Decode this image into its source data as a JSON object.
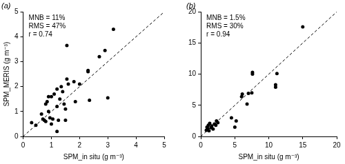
{
  "chart_data": [
    {
      "type": "scatter",
      "title": "(a)",
      "annotations": [
        "MNB = 11%",
        "RMS = 47%",
        "r = 0.74"
      ],
      "x_label": "SPM_in situ (g m⁻³)",
      "y_label": "SPM_MERIS (g m⁻³)",
      "series": [
        {
          "color": "#000000",
          "marker": "circle",
          "x": [
            0.3,
            0.45,
            0.65,
            0.7,
            0.75,
            0.8,
            0.8,
            0.85,
            0.9,
            0.95,
            1.0,
            1.0,
            1.05,
            1.1,
            1.2,
            1.2,
            1.25,
            1.3,
            1.35,
            1.4,
            1.45,
            1.5,
            1.5,
            1.55,
            1.55,
            1.6,
            1.8,
            1.85,
            2.0,
            2.3,
            2.3,
            2.35,
            2.7,
            2.9,
            3.0,
            3.2,
            1.2,
            0.9
          ],
          "values": [
            0.55,
            0.45,
            0.9,
            0.7,
            0.65,
            0.6,
            1.3,
            1.4,
            1.0,
            0.75,
            0.5,
            1.6,
            0.7,
            1.7,
            1.2,
            0.2,
            0.65,
            1.5,
            2.0,
            1.8,
            1.3,
            1.1,
            0.65,
            2.3,
            3.65,
            2.1,
            2.2,
            1.4,
            2.1,
            2.6,
            2.65,
            1.45,
            3.2,
            3.45,
            1.55,
            4.3,
            1.9,
            1.6
          ]
        },
        {
          "type": "line",
          "color": "#000000",
          "line_style": "dashed",
          "x": [
            0,
            5
          ],
          "values": [
            0,
            5
          ]
        }
      ],
      "xlim": [
        0,
        5
      ],
      "ylim": [
        0,
        5
      ],
      "xticks": [
        0,
        1,
        2,
        3,
        4,
        5
      ],
      "yticks": [
        0,
        1,
        2,
        3,
        4,
        5
      ],
      "grid": false
    },
    {
      "type": "scatter",
      "title": "(b)",
      "annotations": [
        "MNB = 1.5%",
        "RMS = 30%",
        "r = 0.94"
      ],
      "x_label": "SPM_in situ (g m⁻³)",
      "series": [
        {
          "color": "#000000",
          "marker": "circle",
          "x": [
            0.8,
            0.9,
            1.0,
            1.1,
            1.2,
            1.3,
            1.5,
            1.6,
            1.8,
            2.0,
            2.2,
            2.3,
            2.5,
            4.5,
            5.0,
            5.2,
            6.0,
            6.1,
            6.8,
            7.0,
            7.5,
            7.6,
            7.6,
            11.0,
            11.0,
            11.2,
            15.0
          ],
          "values": [
            1.0,
            1.5,
            1.3,
            1.8,
            0.9,
            2.1,
            1.4,
            1.7,
            1.2,
            2.0,
            1.8,
            2.5,
            2.2,
            3.0,
            1.5,
            2.5,
            6.4,
            6.8,
            5.2,
            6.9,
            7.0,
            10.0,
            10.3,
            7.9,
            8.3,
            10.1,
            17.6
          ]
        },
        {
          "type": "line",
          "color": "#000000",
          "line_style": "dashed",
          "x": [
            0,
            20
          ],
          "values": [
            0,
            20
          ]
        }
      ],
      "xlim": [
        0,
        20
      ],
      "ylim": [
        0,
        20
      ],
      "xticks": [
        0,
        5,
        10,
        15,
        20
      ],
      "yticks": [
        0,
        5,
        10,
        15,
        20
      ],
      "grid": false
    }
  ]
}
